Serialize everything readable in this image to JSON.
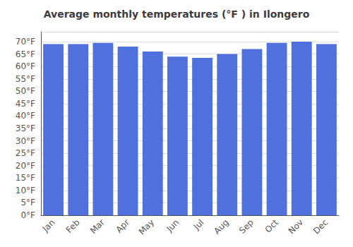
{
  "chart_data": {
    "type": "bar",
    "title": "Average monthly temperatures (°F ) in Ilongero",
    "categories": [
      "Jan",
      "Feb",
      "Mar",
      "Apr",
      "May",
      "Jun",
      "Jul",
      "Aug",
      "Sep",
      "Oct",
      "Nov",
      "Dec"
    ],
    "values": [
      69,
      69,
      69.5,
      68,
      66,
      64,
      63.5,
      65,
      67,
      69.5,
      70,
      69
    ],
    "ylim": [
      0,
      74
    ],
    "yticks": [
      {
        "value": 0,
        "label": "0°F"
      },
      {
        "value": 5,
        "label": "5°F"
      },
      {
        "value": 10,
        "label": "10°F"
      },
      {
        "value": 15,
        "label": "15°F"
      },
      {
        "value": 20,
        "label": "20°F"
      },
      {
        "value": 25,
        "label": "25°F"
      },
      {
        "value": 30,
        "label": "30°F"
      },
      {
        "value": 35,
        "label": "35°F"
      },
      {
        "value": 40,
        "label": "40°F"
      },
      {
        "value": 45,
        "label": "45°F"
      },
      {
        "value": 50,
        "label": "50°F"
      },
      {
        "value": 55,
        "label": "55°F"
      },
      {
        "value": 60,
        "label": "60°F"
      },
      {
        "value": 65,
        "label": "65°F"
      },
      {
        "value": 70,
        "label": "70°F"
      }
    ],
    "grid": true
  }
}
